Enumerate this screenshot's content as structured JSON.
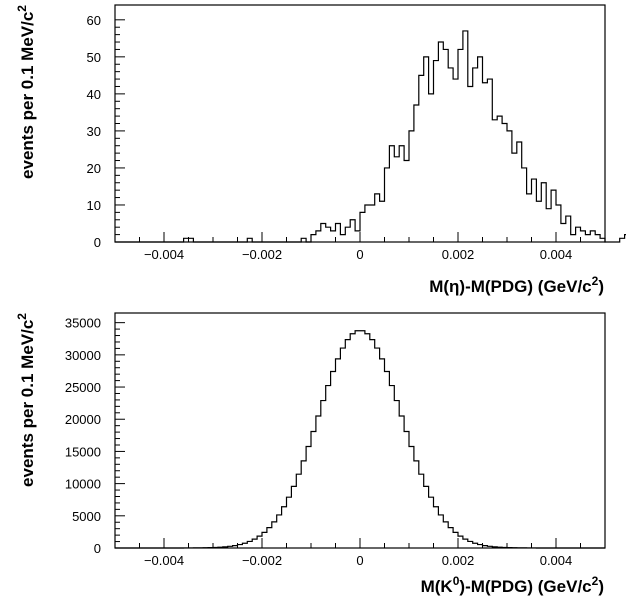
{
  "chart_data": [
    {
      "type": "histogram",
      "xlabel": "M(η)-M(PDG) (GeV/c²)",
      "ylabel": "events per 0.1 MeV/c²",
      "xlim": [
        -0.005,
        0.005
      ],
      "ylim": [
        0,
        64
      ],
      "bin_width": 0.0001,
      "x_ticks": [
        -0.004,
        -0.002,
        0,
        0.002,
        0.004
      ],
      "x_tick_labels": [
        "−0.004",
        "−0.002",
        "0",
        "0.002",
        "0.004"
      ],
      "y_ticks": [
        0,
        10,
        20,
        30,
        40,
        50,
        60
      ],
      "y_tick_labels": [
        "0",
        "10",
        "20",
        "30",
        "40",
        "50",
        "60"
      ],
      "bin_start": -0.005,
      "values": [
        0,
        0,
        0,
        0,
        0,
        0,
        0,
        0,
        0,
        0,
        0,
        0,
        0,
        0,
        1,
        1,
        0,
        0,
        0,
        0,
        0,
        0,
        0,
        0,
        0,
        0,
        0,
        1,
        0,
        0,
        0,
        0,
        0,
        0,
        0,
        0,
        0,
        0,
        1,
        0,
        2,
        3,
        5,
        4,
        3,
        5,
        2,
        4,
        6,
        3,
        8,
        10,
        10,
        13,
        11,
        20,
        26,
        23,
        26,
        22,
        30,
        37,
        45,
        50,
        40,
        49,
        54,
        52,
        47,
        44,
        52,
        57,
        42,
        47,
        50,
        43,
        44,
        33,
        34,
        32,
        30,
        24,
        27,
        20,
        13,
        17,
        11,
        16,
        9,
        14,
        10,
        5,
        7,
        2,
        4,
        3,
        2,
        3,
        2,
        1,
        0,
        0,
        0,
        1,
        2,
        0,
        0,
        0,
        0,
        0,
        0,
        0,
        0,
        1,
        0,
        0,
        0,
        0,
        0
      ]
    },
    {
      "type": "histogram",
      "xlabel": "M(K⁰)-M(PDG) (GeV/c²)",
      "ylabel": "events per 0.1 MeV/c²",
      "xlim": [
        -0.005,
        0.005
      ],
      "ylim": [
        0,
        36500
      ],
      "bin_width": 0.0001,
      "x_ticks": [
        -0.004,
        -0.002,
        0,
        0.002,
        0.004
      ],
      "x_tick_labels": [
        "−0.004",
        "−0.002",
        "0",
        "0.002",
        "0.004"
      ],
      "y_ticks": [
        0,
        5000,
        10000,
        15000,
        20000,
        25000,
        30000,
        35000
      ],
      "y_tick_labels": [
        "0",
        "5000",
        "10000",
        "15000",
        "20000",
        "25000",
        "30000",
        "35000"
      ],
      "distribution": {
        "shape": "gaussian",
        "peak": 33800,
        "mean": 0,
        "sigma": 0.00085
      }
    }
  ]
}
